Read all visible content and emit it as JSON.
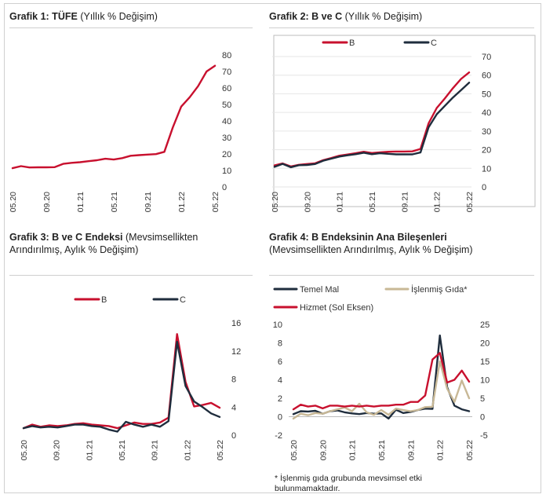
{
  "x_tick_labels": [
    "05.20",
    "09.20",
    "01.21",
    "05.21",
    "09.21",
    "01.22",
    "05.22"
  ],
  "charts": [
    {
      "id": "g1",
      "title_bold": "Grafik 1: TÜFE",
      "title_rest": "(Yıllık % Değişim)",
      "chart_data": {
        "type": "line",
        "title": "Grafik 1: TÜFE (Yıllık % Değişim)",
        "xlabel": "",
        "ylabel": "",
        "ylim": [
          0,
          80
        ],
        "yticks": [
          "80",
          "70",
          "60",
          "50",
          "40",
          "30",
          "20",
          "10",
          "0"
        ],
        "x_tick_labels": [
          "05.20",
          "09.20",
          "01.21",
          "05.21",
          "09.21",
          "01.22",
          "05.22"
        ],
        "legend": "none",
        "series": [
          {
            "name": "",
            "color": "#c8102e",
            "values": [
              11.4,
              12.6,
              11.8,
              11.9,
              11.9,
              12.0,
              14.0,
              14.6,
              15.0,
              15.6,
              16.2,
              17.1,
              16.6,
              17.5,
              18.9,
              19.3,
              19.6,
              19.9,
              21.3,
              36.1,
              48.7,
              54.4,
              61.1,
              70.0,
              73.5
            ]
          }
        ]
      }
    },
    {
      "id": "g2",
      "title_bold": "Grafik 2: B ve C",
      "title_rest": "(Yıllık % Değişim)",
      "chart_data": {
        "type": "line",
        "title": "Grafik 2: B ve C (Yıllık % Değişim)",
        "xlabel": "",
        "ylabel": "",
        "ylim": [
          0,
          70
        ],
        "yticks": [
          "70",
          "60",
          "50",
          "40",
          "30",
          "20",
          "10",
          "0"
        ],
        "x_tick_labels": [
          "05.20",
          "09.20",
          "01.21",
          "05.21",
          "09.21",
          "01.22",
          "05.22"
        ],
        "legend": "top",
        "series": [
          {
            "name": "B",
            "color": "#c8102e",
            "values": [
              11.6,
              12.6,
              11.0,
              11.9,
              12.3,
              12.7,
              14.4,
              15.5,
              16.8,
              17.4,
              18.1,
              18.9,
              18.2,
              18.6,
              18.9,
              19.0,
              19.0,
              19.1,
              20.4,
              34.1,
              42.4,
              47.5,
              53.0,
              58.0,
              61.5
            ]
          },
          {
            "name": "C",
            "color": "#1f2d3d",
            "values": [
              10.8,
              12.4,
              10.6,
              11.7,
              11.8,
              12.3,
              14.1,
              15.2,
              16.3,
              17.0,
              17.6,
              18.4,
              17.6,
              18.1,
              17.8,
              17.5,
              17.5,
              17.5,
              18.5,
              32.0,
              39.0,
              43.5,
              48.0,
              52.0,
              56.0
            ]
          }
        ]
      }
    },
    {
      "id": "g3",
      "title_bold": "Grafik 3: B ve C Endeksi",
      "title_rest": "(Mevsimsellikten Arındırılmış, Aylık % Değişim)",
      "chart_data": {
        "type": "line",
        "title": "Grafik 3: B ve C Endeksi (Mevsimsellikten Arındırılmış, Aylık % Değişim)",
        "xlabel": "",
        "ylabel": "",
        "ylim": [
          0,
          16
        ],
        "yticks": [
          "16",
          "12",
          "8",
          "4",
          "0"
        ],
        "x_tick_labels": [
          "05.20",
          "09.20",
          "01.21",
          "05.21",
          "09.21",
          "01.22",
          "05.22"
        ],
        "legend": "top",
        "series": [
          {
            "name": "B",
            "color": "#c8102e",
            "values": [
              1.0,
              1.5,
              1.2,
              1.4,
              1.3,
              1.4,
              1.6,
              1.7,
              1.5,
              1.4,
              1.3,
              1.0,
              1.4,
              1.8,
              1.6,
              1.6,
              1.8,
              2.5,
              14.4,
              7.6,
              4.1,
              4.3,
              4.6,
              3.9
            ]
          },
          {
            "name": "C",
            "color": "#1f2d3d",
            "values": [
              1.0,
              1.3,
              1.1,
              1.2,
              1.1,
              1.3,
              1.5,
              1.5,
              1.3,
              1.2,
              0.8,
              0.5,
              1.9,
              1.5,
              1.2,
              1.5,
              1.2,
              2.0,
              13.3,
              7.0,
              4.8,
              4.0,
              3.1,
              2.6
            ]
          }
        ]
      }
    },
    {
      "id": "g4",
      "title_bold": "Grafik 4: B Endeksinin Ana Bileşenleri",
      "title_rest": "(Mevsimsellikten Arındırılmış, Aylık % Değişim)",
      "chart_data": {
        "type": "line",
        "title": "Grafik 4: B Endeksinin Ana Bileşenleri (Mevsimsellikten Arındırılmış, Aylık % Değişim)",
        "xlabel": "",
        "ylabel": "",
        "ylim_left": [
          -2,
          10
        ],
        "ylim_right": [
          -5,
          25
        ],
        "yticks_left": [
          "10",
          "8",
          "6",
          "4",
          "2",
          "0",
          "-2"
        ],
        "yticks_right": [
          "25",
          "20",
          "15",
          "10",
          "5",
          "0",
          "-5"
        ],
        "x_tick_labels": [
          "05.20",
          "09.20",
          "01.21",
          "05.21",
          "09.21",
          "01.22",
          "05.22"
        ],
        "legend": "top",
        "series": [
          {
            "name": "Temel Mal",
            "color": "#1f2d3d",
            "axis": "right",
            "values": [
              0.7,
              1.5,
              1.4,
              1.6,
              0.8,
              1.5,
              1.7,
              1.2,
              0.9,
              0.7,
              1.0,
              0.8,
              0.9,
              -0.5,
              1.9,
              1.0,
              1.3,
              1.8,
              2.2,
              2.1,
              22.0,
              8.0,
              3.0,
              2.0,
              1.5
            ]
          },
          {
            "name": "İşlenmiş Gıda*",
            "color": "#c8b896",
            "axis": "right",
            "values": [
              -0.5,
              0.8,
              0.4,
              1.0,
              0.8,
              1.5,
              2.0,
              2.5,
              1.5,
              3.5,
              1.2,
              0.5,
              1.8,
              0.5,
              2.2,
              1.8,
              1.5,
              1.8,
              2.6,
              2.7,
              15.0,
              7.6,
              4.0,
              9.8,
              5.0
            ]
          },
          {
            "name": "Hizmet (Sol Eksen)",
            "color": "#c8102e",
            "axis": "left",
            "values": [
              0.8,
              1.3,
              1.1,
              1.2,
              0.9,
              1.2,
              1.2,
              1.1,
              1.2,
              1.1,
              1.2,
              1.1,
              1.2,
              1.2,
              1.3,
              1.3,
              1.6,
              1.6,
              2.3,
              6.2,
              6.9,
              3.7,
              4.0,
              5.0,
              3.8
            ]
          }
        ]
      }
    }
  ],
  "footnote": "* İşlenmiş gıda grubunda mevsimsel etki bulunmamaktadır."
}
